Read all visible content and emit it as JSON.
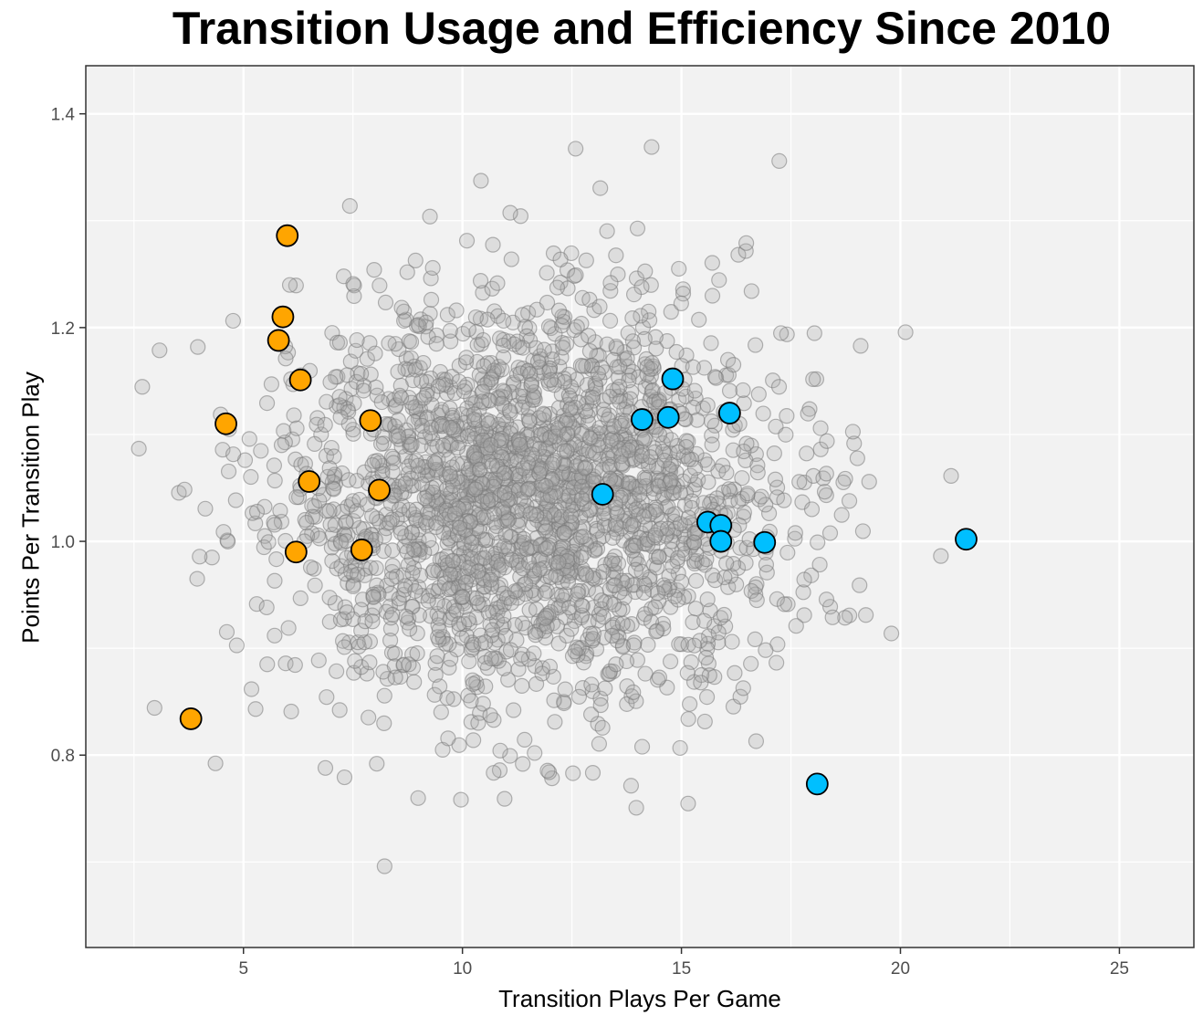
{
  "chart_data": {
    "type": "scatter",
    "title": "Transition Usage and Efficiency Since 2010",
    "xlabel": "Transition Plays Per Game",
    "ylabel": "Points Per Transition Play",
    "xlim": [
      1.4,
      26.7
    ],
    "ylim": [
      0.62,
      1.445
    ],
    "x_ticks": [
      5,
      10,
      15,
      20,
      25
    ],
    "x_tick_labels": [
      "5",
      "10",
      "15",
      "20",
      "25"
    ],
    "y_ticks": [
      0.8,
      1.0,
      1.2,
      1.4
    ],
    "y_tick_labels": [
      "0.8",
      "1.0",
      "1.2",
      "1.4"
    ],
    "grid": true,
    "legend": "none",
    "colors": {
      "background_points": "#a9a9a9",
      "background_outline": "#7a7a7a",
      "orange": "#ffa500",
      "blue": "#00bfff",
      "panel": "#f2f2f2",
      "grid": "#ffffff"
    },
    "background_cloud": {
      "count": 2400,
      "x_mean": 11.6,
      "x_sd": 2.9,
      "y_mean": 1.04,
      "y_sd": 0.095
    },
    "series": [
      {
        "color": "#ffa500",
        "points": [
          {
            "x": 3.8,
            "y": 0.834
          },
          {
            "x": 4.6,
            "y": 1.11
          },
          {
            "x": 5.8,
            "y": 1.188
          },
          {
            "x": 5.9,
            "y": 1.21
          },
          {
            "x": 6.0,
            "y": 1.286
          },
          {
            "x": 6.2,
            "y": 0.99
          },
          {
            "x": 6.3,
            "y": 1.151
          },
          {
            "x": 6.5,
            "y": 1.056
          },
          {
            "x": 7.7,
            "y": 0.992
          },
          {
            "x": 7.9,
            "y": 1.113
          },
          {
            "x": 8.1,
            "y": 1.048
          }
        ]
      },
      {
        "color": "#00bfff",
        "points": [
          {
            "x": 13.2,
            "y": 1.044
          },
          {
            "x": 14.1,
            "y": 1.114
          },
          {
            "x": 14.7,
            "y": 1.116
          },
          {
            "x": 14.8,
            "y": 1.152
          },
          {
            "x": 15.6,
            "y": 1.018
          },
          {
            "x": 15.9,
            "y": 1.015
          },
          {
            "x": 15.9,
            "y": 1.0
          },
          {
            "x": 16.1,
            "y": 1.12
          },
          {
            "x": 16.9,
            "y": 0.999
          },
          {
            "x": 18.1,
            "y": 0.773
          },
          {
            "x": 21.5,
            "y": 1.002
          }
        ]
      }
    ]
  }
}
